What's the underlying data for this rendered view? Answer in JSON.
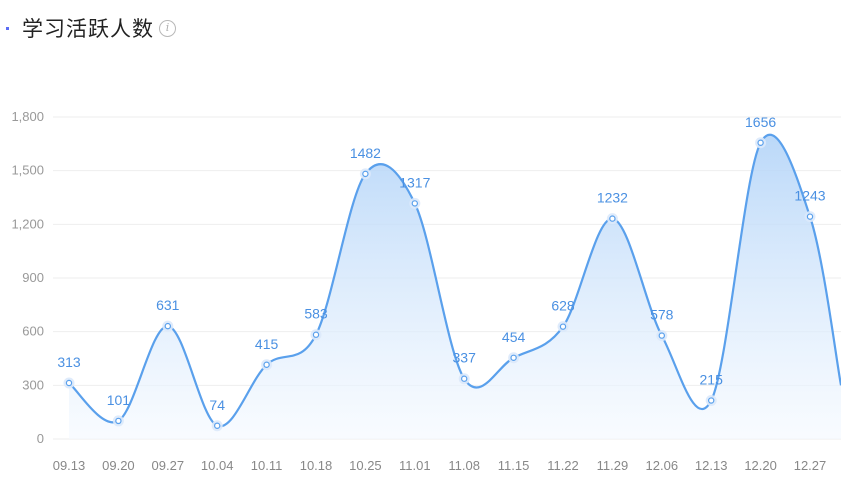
{
  "header": {
    "title": "学习活跃人数",
    "info_icon": "info-circle-icon",
    "accent_color": "#5b6cf5"
  },
  "chart_data": {
    "type": "area",
    "title": "学习活跃人数",
    "xlabel": "",
    "ylabel": "",
    "categories": [
      "09.13",
      "09.20",
      "09.27",
      "10.04",
      "10.11",
      "10.18",
      "10.25",
      "11.01",
      "11.08",
      "11.15",
      "11.22",
      "11.29",
      "12.06",
      "12.13",
      "12.20",
      "12.27"
    ],
    "values": [
      313,
      101,
      631,
      74,
      415,
      583,
      1482,
      1317,
      337,
      454,
      628,
      1232,
      578,
      215,
      1656,
      1243
    ],
    "trailing_value": 300,
    "y_ticks": [
      "0",
      "300",
      "600",
      "900",
      "1,200",
      "1,500",
      "1,800"
    ],
    "ylim": [
      0,
      1800
    ],
    "grid": true,
    "smooth": true,
    "line_color": "#5aa0ec",
    "fill_top_color": "#b3d4f8",
    "fill_bottom_color": "#f4f9ff"
  }
}
